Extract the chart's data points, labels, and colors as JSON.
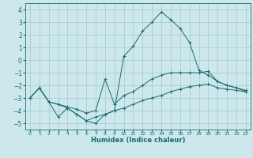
{
  "xlabel": "Humidex (Indice chaleur)",
  "xlim": [
    -0.5,
    23.5
  ],
  "ylim": [
    -5.5,
    4.5
  ],
  "background_color": "#cce8ec",
  "grid_color": "#aacdd4",
  "line_color": "#1a6b6b",
  "line1_x": [
    0,
    1,
    2,
    3,
    4,
    5,
    6,
    7,
    8,
    9,
    10,
    11,
    12,
    13,
    14,
    15,
    16,
    17,
    18,
    19,
    20,
    21,
    22,
    23
  ],
  "line1_y": [
    -3.0,
    -2.2,
    -3.3,
    -4.5,
    -3.8,
    -4.3,
    -4.8,
    -4.5,
    -4.3,
    -4.0,
    -3.8,
    -3.5,
    -3.2,
    -3.0,
    -2.8,
    -2.5,
    -2.3,
    -2.1,
    -2.0,
    -1.9,
    -2.2,
    -2.3,
    -2.4,
    -2.5
  ],
  "line2_x": [
    0,
    1,
    2,
    3,
    4,
    5,
    6,
    7,
    8,
    9,
    10,
    11,
    12,
    13,
    14,
    15,
    16,
    17,
    18,
    19,
    20,
    21,
    22,
    23
  ],
  "line2_y": [
    -3.0,
    -2.2,
    -3.3,
    -3.5,
    -3.8,
    -4.3,
    -4.8,
    -5.0,
    -4.3,
    -4.0,
    0.3,
    1.1,
    2.3,
    3.0,
    3.8,
    3.2,
    2.5,
    1.4,
    -0.8,
    -1.2,
    -1.7,
    -2.0,
    -2.2,
    -2.5
  ],
  "line3_x": [
    0,
    1,
    2,
    3,
    4,
    5,
    6,
    7,
    8,
    9,
    10,
    11,
    12,
    13,
    14,
    15,
    16,
    17,
    18,
    19,
    20,
    21,
    22,
    23
  ],
  "line3_y": [
    -3.0,
    -2.2,
    -3.3,
    -3.5,
    -3.7,
    -3.9,
    -4.2,
    -4.0,
    -1.5,
    -3.5,
    -2.8,
    -2.5,
    -2.0,
    -1.5,
    -1.2,
    -1.0,
    -1.0,
    -1.0,
    -1.0,
    -0.9,
    -1.7,
    -2.0,
    -2.2,
    -2.4
  ],
  "xticks": [
    0,
    1,
    2,
    3,
    4,
    5,
    6,
    7,
    8,
    9,
    10,
    11,
    12,
    13,
    14,
    15,
    16,
    17,
    18,
    19,
    20,
    21,
    22,
    23
  ],
  "yticks": [
    -5,
    -4,
    -3,
    -2,
    -1,
    0,
    1,
    2,
    3,
    4
  ]
}
